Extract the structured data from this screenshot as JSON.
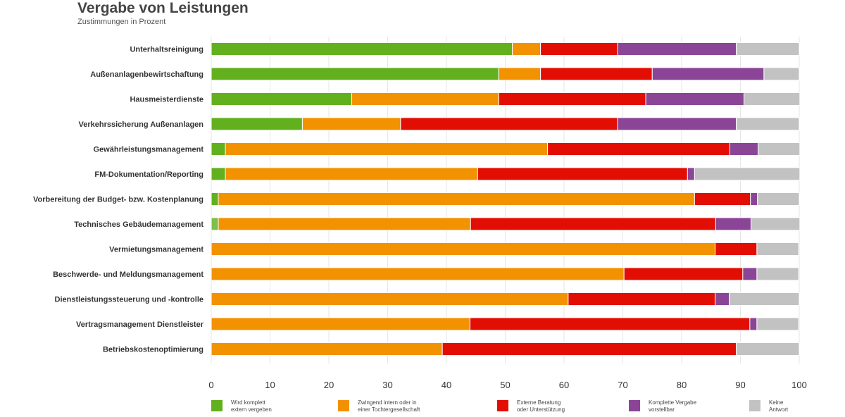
{
  "chart_data": {
    "type": "bar",
    "orientation": "horizontal",
    "stacked": true,
    "title": "Vergabe von Leistungen",
    "subtitle": "Zustimmungen in Prozent",
    "xlim": [
      0,
      100
    ],
    "xticks": [
      0,
      10,
      20,
      30,
      40,
      50,
      60,
      70,
      80,
      90,
      100
    ],
    "grid": true,
    "legend_position": "bottom",
    "categories": [
      "Unterhaltsreinigung",
      "Außenanlagenbewirtschaftung",
      "Hausmeisterdienste",
      "Verkehrssicherung Außenanlagen",
      "Gewährleistungsmanagement",
      "FM-Dokumentation/Reporting",
      "Vorbereitung der Budget- bzw. Kostenplanung",
      "Technisches Gebäudemanagement",
      "Vermietungsmanagement",
      "Beschwerde- und Meldungsmanagement",
      "Dienstleistungssteuerung und -kontrolle",
      "Vertragsmanagement Dienstleister",
      "Betriebskostenoptimierung"
    ],
    "series": [
      {
        "name": "Wird komplett\nextern vergeben",
        "color": "#62b01e",
        "values": [
          51.2,
          48.9,
          23.9,
          15.5,
          2.4,
          2.4,
          1.2,
          1.2,
          0,
          0,
          0,
          0,
          0
        ]
      },
      {
        "name": "Zwingend intern oder in\neiner Tochtergesellschaft",
        "color": "#f39200",
        "values": [
          4.8,
          7.1,
          25.0,
          16.7,
          54.8,
          42.9,
          81.0,
          42.9,
          85.7,
          70.2,
          60.7,
          44.0,
          39.3
        ]
      },
      {
        "name": "Externe Beratung\noder Unterstützung",
        "color": "#e30e03",
        "values": [
          13.1,
          19.0,
          25.0,
          36.9,
          31.0,
          35.7,
          9.5,
          41.7,
          7.1,
          20.2,
          25.0,
          47.6,
          50.0
        ]
      },
      {
        "name": "Komplette Vergabe\nvorstellbar",
        "color": "#8a4597",
        "values": [
          20.2,
          19.0,
          16.7,
          20.2,
          4.8,
          1.2,
          1.2,
          6.0,
          0,
          2.4,
          2.4,
          1.2,
          0
        ]
      },
      {
        "name": "Keine\nAntwort",
        "color": "#c2c2c2",
        "values": [
          10.7,
          6.0,
          9.5,
          10.7,
          7.1,
          17.9,
          7.1,
          8.3,
          7.1,
          7.1,
          11.9,
          7.1,
          10.7
        ]
      }
    ]
  }
}
